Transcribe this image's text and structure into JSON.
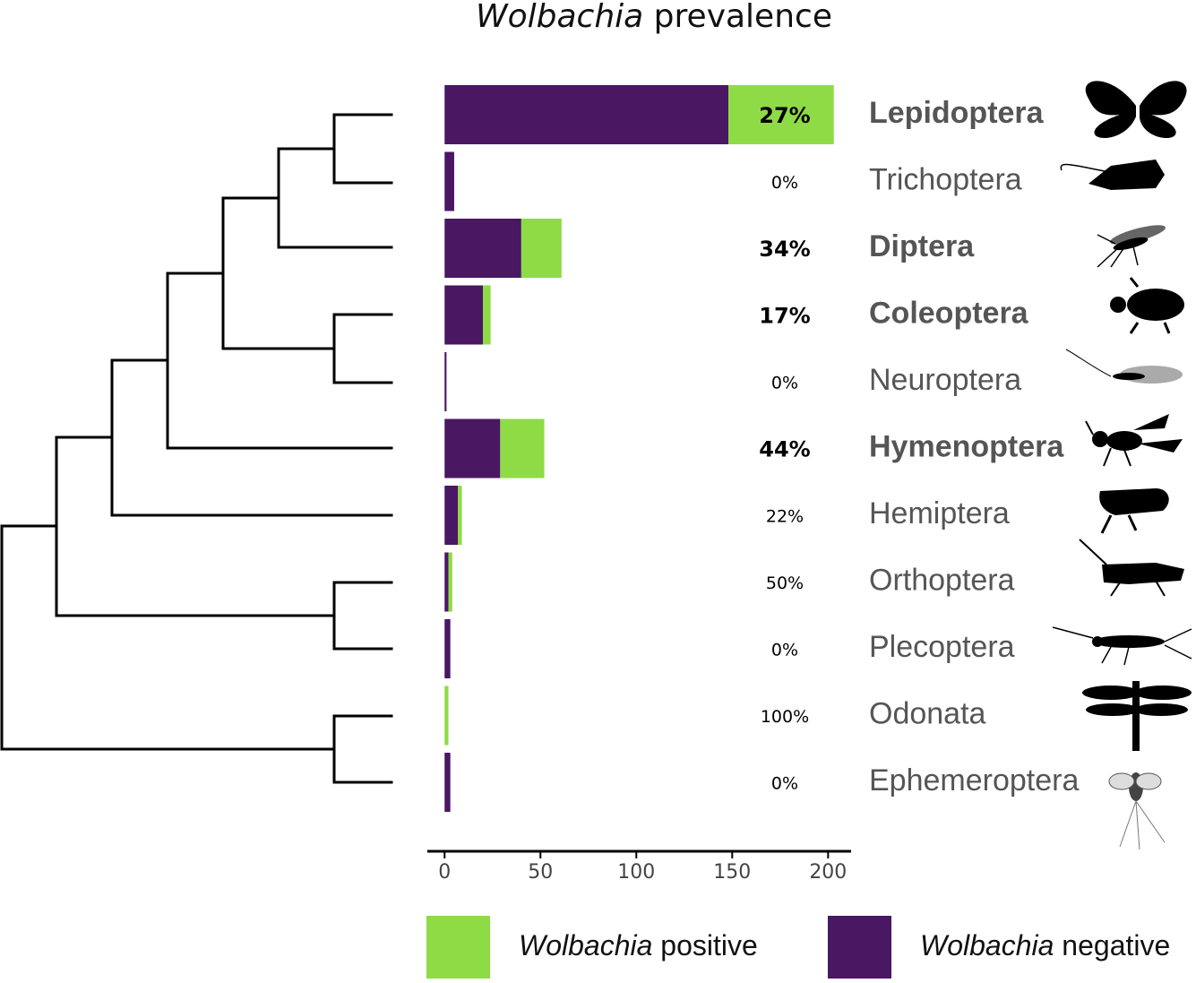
{
  "chart_data": {
    "type": "stacked-barh",
    "title": "Wolbachia prevalence",
    "categories": [
      "Lepidoptera",
      "Trichoptera",
      "Diptera",
      "Coleoptera",
      "Neuroptera",
      "Hymenoptera",
      "Hemiptera",
      "Orthoptera",
      "Plecoptera",
      "Odonata",
      "Ephemeroptera"
    ],
    "bold_categories": [
      true,
      false,
      true,
      true,
      false,
      true,
      false,
      false,
      false,
      false,
      false
    ],
    "annotations": [
      "27%",
      "0%",
      "34%",
      "17%",
      "0%",
      "44%",
      "22%",
      "50%",
      "0%",
      "100%",
      "0%"
    ],
    "series": [
      {
        "name": "Wolbachia negative",
        "color": "#4a1763",
        "values": [
          148,
          5,
          40,
          20,
          1,
          29,
          7,
          2,
          3,
          0,
          3
        ]
      },
      {
        "name": "Wolbachia positive",
        "color": "#8fdb45",
        "values": [
          55,
          0,
          21,
          4,
          0,
          23,
          2,
          2,
          0,
          2,
          0
        ]
      }
    ],
    "xlim": [
      -9,
      212
    ],
    "xticks": [
      0,
      50,
      100,
      150,
      200
    ]
  }
}
